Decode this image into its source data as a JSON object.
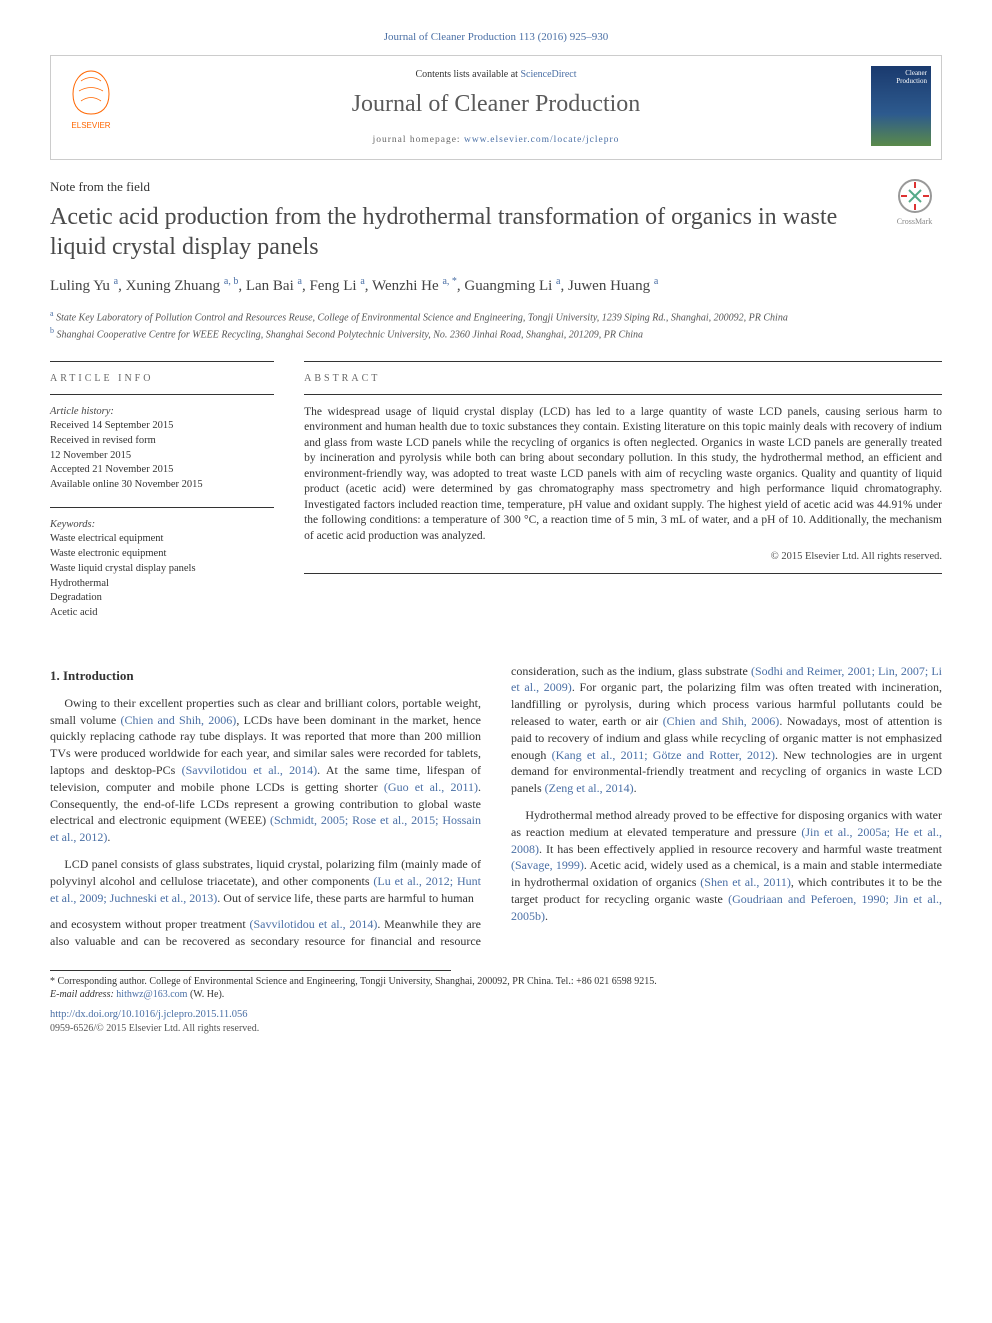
{
  "page_ref": "Journal of Cleaner Production 113 (2016) 925–930",
  "header": {
    "contents_prefix": "Contents lists available at ",
    "contents_link": "ScienceDirect",
    "journal_name": "Journal of Cleaner Production",
    "homepage_prefix": "journal homepage: ",
    "homepage_url": "www.elsevier.com/locate/jclepro",
    "publisher_logo_alt": "ELSEVIER",
    "cover_text": "Cleaner Production"
  },
  "note_type": "Note from the field",
  "title": "Acetic acid production from the hydrothermal transformation of organics in waste liquid crystal display panels",
  "crossmark_label": "CrossMark",
  "authors_html": "Luling Yu <sup>a</sup>, Xuning Zhuang <sup>a, b</sup>, Lan Bai <sup>a</sup>, Feng Li <sup>a</sup>, Wenzhi He <sup>a, *</sup>, Guangming Li <sup>a</sup>, Juwen Huang <sup>a</sup>",
  "authors": [
    {
      "name": "Luling Yu",
      "aff": "a"
    },
    {
      "name": "Xuning Zhuang",
      "aff": "a, b"
    },
    {
      "name": "Lan Bai",
      "aff": "a"
    },
    {
      "name": "Feng Li",
      "aff": "a"
    },
    {
      "name": "Wenzhi He",
      "aff": "a, *"
    },
    {
      "name": "Guangming Li",
      "aff": "a"
    },
    {
      "name": "Juwen Huang",
      "aff": "a"
    }
  ],
  "affiliations": {
    "a": "State Key Laboratory of Pollution Control and Resources Reuse, College of Environmental Science and Engineering, Tongji University, 1239 Siping Rd., Shanghai, 200092, PR China",
    "b": "Shanghai Cooperative Centre for WEEE Recycling, Shanghai Second Polytechnic University, No. 2360 Jinhai Road, Shanghai, 201209, PR China"
  },
  "article_info": {
    "heading": "ARTICLE INFO",
    "history_label": "Article history:",
    "history": [
      "Received 14 September 2015",
      "Received in revised form",
      "12 November 2015",
      "Accepted 21 November 2015",
      "Available online 30 November 2015"
    ],
    "keywords_label": "Keywords:",
    "keywords": [
      "Waste electrical equipment",
      "Waste electronic equipment",
      "Waste liquid crystal display panels",
      "Hydrothermal",
      "Degradation",
      "Acetic acid"
    ]
  },
  "abstract": {
    "heading": "ABSTRACT",
    "text": "The widespread usage of liquid crystal display (LCD) has led to a large quantity of waste LCD panels, causing serious harm to environment and human health due to toxic substances they contain. Existing literature on this topic mainly deals with recovery of indium and glass from waste LCD panels while the recycling of organics is often neglected. Organics in waste LCD panels are generally treated by incineration and pyrolysis while both can bring about secondary pollution. In this study, the hydrothermal method, an efficient and environment-friendly way, was adopted to treat waste LCD panels with aim of recycling waste organics. Quality and quantity of liquid product (acetic acid) were determined by gas chromatography mass spectrometry and high performance liquid chromatography. Investigated factors included reaction time, temperature, pH value and oxidant supply. The highest yield of acetic acid was 44.91% under the following conditions: a temperature of 300 °C, a reaction time of 5 min, 3 mL of water, and a pH of 10. Additionally, the mechanism of acetic acid production was analyzed.",
    "copyright": "© 2015 Elsevier Ltd. All rights reserved."
  },
  "body": {
    "section_heading": "1. Introduction",
    "p1": "Owing to their excellent properties such as clear and brilliant colors, portable weight, small volume (Chien and Shih, 2006), LCDs have been dominant in the market, hence quickly replacing cathode ray tube displays. It was reported that more than 200 million TVs were produced worldwide for each year, and similar sales were recorded for tablets, laptops and desktop-PCs (Savvilotidou et al., 2014). At the same time, lifespan of television, computer and mobile phone LCDs is getting shorter (Guo et al., 2011). Consequently, the end-of-life LCDs represent a growing contribution to global waste electrical and electronic equipment (WEEE) (Schmidt, 2005; Rose et al., 2015; Hossain et al., 2012).",
    "p2": "LCD panel consists of glass substrates, liquid crystal, polarizing film (mainly made of polyvinyl alcohol and cellulose triacetate), and other components (Lu et al., 2012; Hunt et al., 2009; Juchneski et al., 2013). Out of service life, these parts are harmful to human",
    "p3": "and ecosystem without proper treatment (Savvilotidou et al., 2014). Meanwhile they are also valuable and can be recovered as secondary resource for financial and resource consideration, such as the indium, glass substrate (Sodhi and Reimer, 2001; Lin, 2007; Li et al., 2009). For organic part, the polarizing film was often treated with incineration, landfilling or pyrolysis, during which process various harmful pollutants could be released to water, earth or air (Chien and Shih, 2006). Nowadays, most of attention is paid to recovery of indium and glass while recycling of organic matter is not emphasized enough (Kang et al., 2011; Götze and Rotter, 2012). New technologies are in urgent demand for environmental-friendly treatment and recycling of organics in waste LCD panels (Zeng et al., 2014).",
    "p4": "Hydrothermal method already proved to be effective for disposing organics with water as reaction medium at elevated temperature and pressure (Jin et al., 2005a; He et al., 2008). It has been effectively applied in resource recovery and harmful waste treatment (Savage, 1999). Acetic acid, widely used as a chemical, is a main and stable intermediate in hydrothermal oxidation of organics (Shen et al., 2011), which contributes it to be the target product for recycling organic waste (Goudriaan and Peferoen, 1990; Jin et al., 2005b)."
  },
  "footer": {
    "corr_label": "* Corresponding author. College of Environmental Science and Engineering, Tongji University, Shanghai, 200092, PR China. Tel.: +86 021 6598 9215.",
    "email_label": "E-mail address: ",
    "email": "hithwz@163.com",
    "email_suffix": " (W. He).",
    "doi": "http://dx.doi.org/10.1016/j.jclepro.2015.11.056",
    "issn": "0959-6526/© 2015 Elsevier Ltd. All rights reserved."
  },
  "colors": {
    "link": "#4a6fa5",
    "text": "#333333",
    "heading": "#4a4a4a",
    "elsevier_orange": "#ff6600"
  }
}
